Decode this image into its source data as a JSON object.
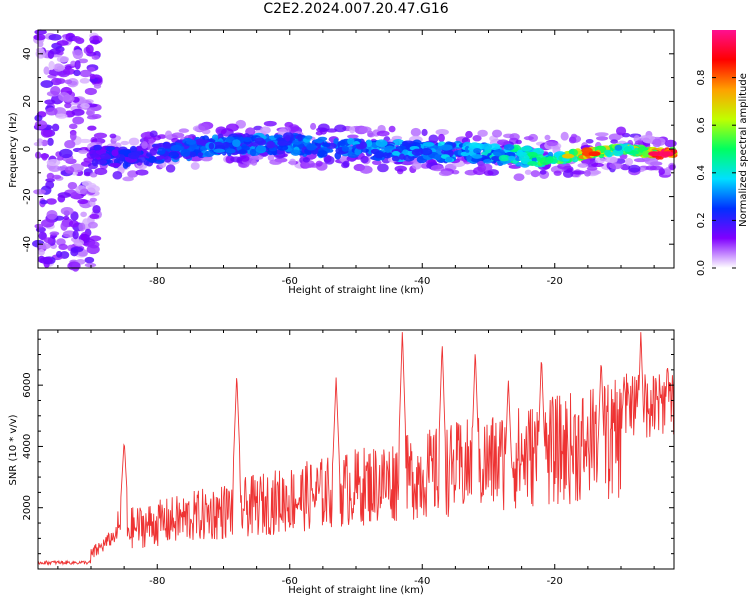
{
  "page": {
    "title": "C2E2.2024.007.20.47.G16"
  },
  "chart_data": [
    {
      "type": "heatmap",
      "xlabel": "Height of straight line (km)",
      "ylabel": "Frequency (Hz)",
      "xlim": [
        -98,
        -2
      ],
      "ylim": [
        -50,
        50
      ],
      "xticks": [
        -80,
        -60,
        -40,
        -20
      ],
      "yticks": [
        -40,
        -20,
        0,
        20,
        40
      ],
      "colorbar": {
        "label": "Normalized spectral amplitude",
        "range": [
          0.0,
          1.0
        ],
        "ticks": [
          "0.0",
          "0.2",
          "0.4",
          "0.6",
          "0.8"
        ],
        "colormap": [
          "#ffffff",
          "#8000ff",
          "#0030ff",
          "#00e0ff",
          "#00ff60",
          "#c0ff00",
          "#ffa000",
          "#ff0000",
          "#ff1090"
        ]
      },
      "ridge": {
        "description_points": [
          {
            "x": -90,
            "y": -2,
            "amp": 0.22
          },
          {
            "x": -85,
            "y": -4,
            "amp": 0.25
          },
          {
            "x": -80,
            "y": -2,
            "amp": 0.28
          },
          {
            "x": -70,
            "y": 2,
            "amp": 0.32
          },
          {
            "x": -60,
            "y": 2,
            "amp": 0.33
          },
          {
            "x": -50,
            "y": 0,
            "amp": 0.34
          },
          {
            "x": -40,
            "y": -1,
            "amp": 0.36
          },
          {
            "x": -30,
            "y": -2,
            "amp": 0.4
          },
          {
            "x": -20,
            "y": -4,
            "amp": 0.55
          },
          {
            "x": -15,
            "y": -2,
            "amp": 0.8
          },
          {
            "x": -10,
            "y": 0,
            "amp": 0.55
          },
          {
            "x": -4,
            "y": -2,
            "amp": 0.95
          }
        ]
      }
    },
    {
      "type": "line",
      "xlabel": "Height of straight line (km)",
      "ylabel": "SNR (10 * v/v)",
      "xlim": [
        -98,
        -2
      ],
      "ylim": [
        0,
        7800
      ],
      "xticks": [
        -80,
        -60,
        -40,
        -20
      ],
      "yticks": [
        2000,
        4000,
        6000
      ],
      "color": "#ee3333",
      "peaks": [
        {
          "x": -85,
          "y": 4200
        },
        {
          "x": -68,
          "y": 6400
        },
        {
          "x": -53,
          "y": 6250
        },
        {
          "x": -43,
          "y": 7800
        },
        {
          "x": -37,
          "y": 7400
        },
        {
          "x": -32,
          "y": 7200
        },
        {
          "x": -27,
          "y": 6200
        },
        {
          "x": -22,
          "y": 7000
        },
        {
          "x": -13,
          "y": 6900
        },
        {
          "x": -7,
          "y": 7800
        },
        {
          "x": -3,
          "y": 6800
        }
      ]
    }
  ]
}
